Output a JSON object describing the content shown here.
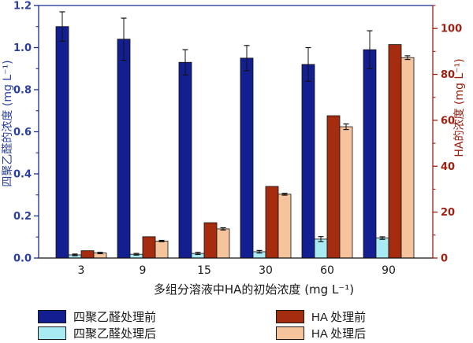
{
  "chart_data": {
    "type": "bar",
    "categories": [
      "3",
      "9",
      "15",
      "30",
      "60",
      "90"
    ],
    "x_axis": {
      "title": "多组分溶液中HA的初始浓度 (mg L⁻¹)",
      "color": "#1a1a1a"
    },
    "left_axis": {
      "title": "四聚乙醛的浓度  (mg L⁻¹)",
      "min": 0,
      "max": 1.2,
      "major_step": 0.2,
      "minor_step": 0.1,
      "tick_labels": [
        "0.0",
        "0.2",
        "0.4",
        "0.6",
        "0.8",
        "1.0",
        "1.2"
      ],
      "color": "#2a3fa0",
      "line_color": "#1b2b90"
    },
    "right_axis": {
      "title": "HA的浓度  (mg L⁻¹)",
      "min": 0,
      "max": 110,
      "major_step": 20,
      "minor_step": 10,
      "tick_labels": [
        "0",
        "20",
        "40",
        "60",
        "80",
        "100"
      ],
      "color": "#9e2010",
      "line_color": "#9e2010"
    },
    "grid": false,
    "legend_position": "bottom",
    "series": [
      {
        "name": "四聚乙醛处理前",
        "axis": "left",
        "color": "#131f90",
        "values": [
          1.1,
          1.04,
          0.93,
          0.95,
          0.92,
          0.99
        ],
        "errors": [
          0.07,
          0.1,
          0.06,
          0.06,
          0.08,
          0.09
        ]
      },
      {
        "name": "四聚乙醛处理后",
        "axis": "left",
        "color": "#a9ebf2",
        "values": [
          0.015,
          0.018,
          0.022,
          0.03,
          0.09,
          0.095
        ],
        "errors": [
          0.004,
          0.004,
          0.005,
          0.006,
          0.012,
          0.006
        ]
      },
      {
        "name": "HA 处理前",
        "axis": "right",
        "color": "#a52c0e",
        "values": [
          3.2,
          9.3,
          15.4,
          31.2,
          62.0,
          93.0
        ],
        "errors": [
          0,
          0,
          0,
          0,
          0,
          0
        ]
      },
      {
        "name": "HA 处理后",
        "axis": "right",
        "color": "#f5c49c",
        "values": [
          2.2,
          7.4,
          12.7,
          27.8,
          57.2,
          87.3
        ],
        "errors": [
          0.3,
          0.3,
          0.5,
          0.4,
          1.2,
          0.8
        ]
      }
    ]
  }
}
